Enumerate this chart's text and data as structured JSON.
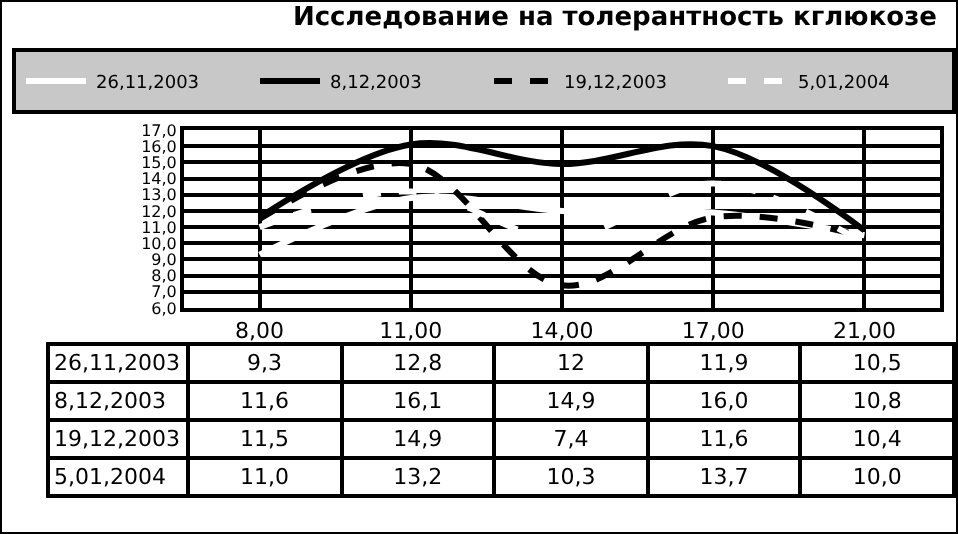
{
  "chart_data": {
    "type": "line",
    "title": "Исследование на толерантность кглюкозе",
    "categories": [
      "8,00",
      "11,00",
      "14,00",
      "17,00",
      "21,00"
    ],
    "series": [
      {
        "name": "26,11,2003",
        "color": "#ffffff",
        "line_style": "solid",
        "values": [
          9.3,
          12.8,
          12,
          11.9,
          10.5
        ],
        "value_labels": [
          "9,3",
          "12,8",
          "12",
          "11,9",
          "10,5"
        ]
      },
      {
        "name": "8,12,2003",
        "color": "#000000",
        "line_style": "solid",
        "values": [
          11.6,
          16.1,
          14.9,
          16.0,
          10.8
        ],
        "value_labels": [
          "11,6",
          "16,1",
          "14,9",
          "16,0",
          "10,8"
        ]
      },
      {
        "name": "19,12,2003",
        "color": "#000000",
        "line_style": "dashed",
        "values": [
          11.5,
          14.9,
          7.4,
          11.6,
          10.4
        ],
        "value_labels": [
          "11,5",
          "14,9",
          "7,4",
          "11,6",
          "10,4"
        ]
      },
      {
        "name": "5,01,2004",
        "color": "#ffffff",
        "line_style": "dashed",
        "values": [
          11.0,
          13.2,
          10.3,
          13.7,
          10.0
        ],
        "value_labels": [
          "11,0",
          "13,2",
          "10,3",
          "13,7",
          "10,0"
        ]
      }
    ],
    "ylim": [
      6,
      17
    ],
    "yticks": [
      {
        "value": 6,
        "label": "6,0"
      },
      {
        "value": 7,
        "label": "7,0"
      },
      {
        "value": 8,
        "label": "8,0"
      },
      {
        "value": 9,
        "label": "9,0"
      },
      {
        "value": 10,
        "label": "10,0"
      },
      {
        "value": 11,
        "label": "11,0"
      },
      {
        "value": 12,
        "label": "12,0"
      },
      {
        "value": 13,
        "label": "13,0"
      },
      {
        "value": 14,
        "label": "14,0"
      },
      {
        "value": 15,
        "label": "15,0"
      },
      {
        "value": 16,
        "label": "16,0"
      },
      {
        "value": 17,
        "label": "17,0"
      }
    ],
    "grid": true,
    "legend": "top",
    "marker": "none",
    "data_labels": true
  }
}
